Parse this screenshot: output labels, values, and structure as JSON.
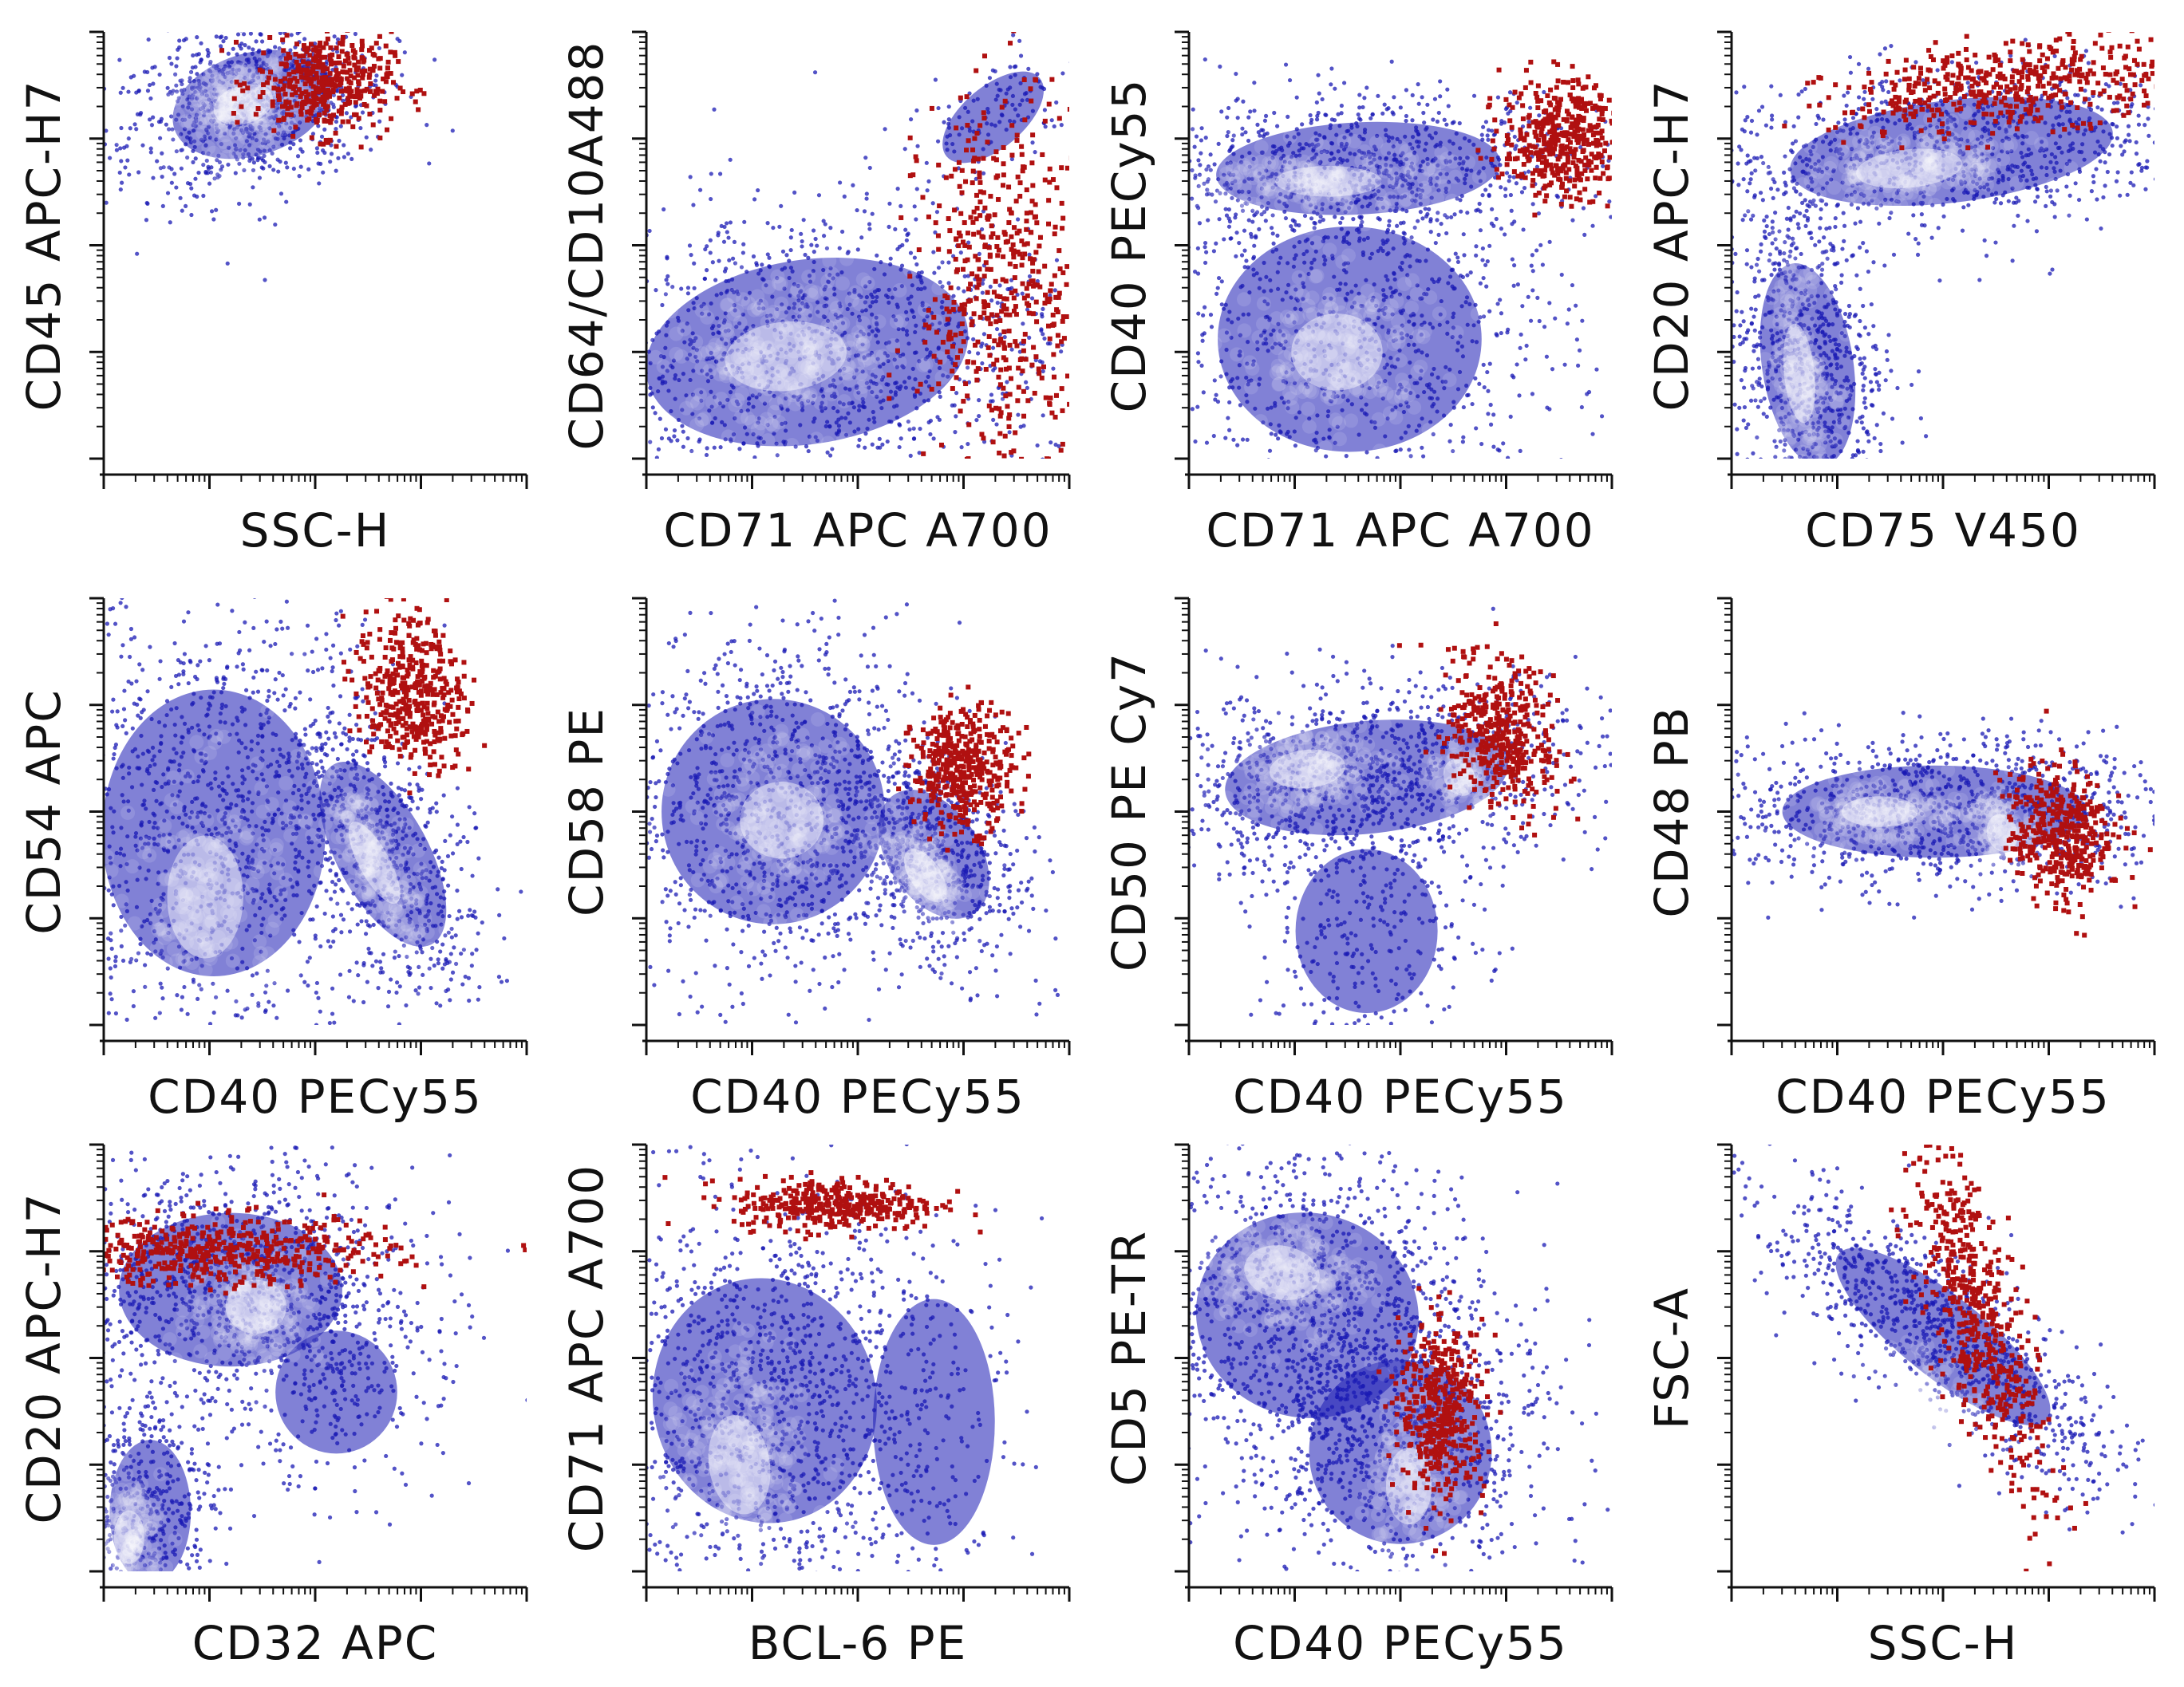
{
  "colors": {
    "population": "#1a1ab4",
    "core": "#ffffff",
    "gated": "#b01010",
    "axis": "#111111"
  },
  "chart_data": [
    {
      "type": "scatter",
      "xlabel": "SSC-H",
      "ylabel": "CD45 APC-H7",
      "xlim": [
        0,
        1
      ],
      "ylim": [
        0,
        1
      ],
      "clouds": [
        [
          0.35,
          0.83,
          0.16,
          0.1,
          0.3,
          900
        ]
      ],
      "cores": [
        [
          0.33,
          0.83,
          0.08,
          0.05,
          0.3,
          260
        ]
      ],
      "gated": [
        [
          0.52,
          0.88,
          0.08,
          0.06,
          0.0,
          420
        ]
      ]
    },
    {
      "type": "scatter",
      "xlabel": "CD71  APC  A700",
      "ylabel": "CD64/CD10A488",
      "xlim": [
        0,
        1
      ],
      "ylim": [
        0,
        1
      ],
      "clouds": [
        [
          0.38,
          0.25,
          0.32,
          0.18,
          0.15,
          1300
        ],
        [
          0.82,
          0.8,
          0.12,
          0.06,
          0.7,
          120
        ]
      ],
      "cores": [
        [
          0.33,
          0.24,
          0.16,
          0.09,
          0.1,
          280
        ]
      ],
      "gated": [
        [
          0.85,
          0.4,
          0.1,
          0.22,
          0.0,
          520
        ]
      ]
    },
    {
      "type": "scatter",
      "xlabel": "CD71  APC  A700",
      "ylabel": "CD40 PECy55",
      "xlim": [
        0,
        1
      ],
      "ylim": [
        0,
        1
      ],
      "clouds": [
        [
          0.4,
          0.68,
          0.28,
          0.09,
          0.05,
          800
        ],
        [
          0.38,
          0.28,
          0.26,
          0.22,
          0.0,
          950
        ]
      ],
      "cores": [
        [
          0.33,
          0.65,
          0.14,
          0.04,
          0.0,
          200
        ],
        [
          0.35,
          0.25,
          0.12,
          0.1,
          0.0,
          220
        ]
      ],
      "gated": [
        [
          0.88,
          0.75,
          0.07,
          0.07,
          0.0,
          420
        ]
      ]
    },
    {
      "type": "scatter",
      "xlabel": "CD75  V450",
      "ylabel": "CD20 APC-H7",
      "xlim": [
        0,
        1
      ],
      "ylim": [
        0,
        1
      ],
      "clouds": [
        [
          0.18,
          0.22,
          0.09,
          0.2,
          0.15,
          800
        ],
        [
          0.52,
          0.72,
          0.32,
          0.1,
          0.12,
          1000
        ]
      ],
      "cores": [
        [
          0.16,
          0.2,
          0.04,
          0.13,
          0.1,
          200
        ],
        [
          0.42,
          0.68,
          0.14,
          0.05,
          0.1,
          220
        ]
      ],
      "gated": [
        [
          0.68,
          0.88,
          0.22,
          0.05,
          0.12,
          480
        ]
      ]
    },
    {
      "type": "scatter",
      "xlabel": "CD40   PECy55",
      "ylabel": "CD54  APC",
      "xlim": [
        0,
        1
      ],
      "ylim": [
        0,
        1
      ],
      "clouds": [
        [
          0.26,
          0.45,
          0.22,
          0.28,
          0.0,
          1200
        ],
        [
          0.66,
          0.4,
          0.09,
          0.2,
          0.5,
          600
        ]
      ],
      "cores": [
        [
          0.24,
          0.3,
          0.1,
          0.16,
          0.0,
          200
        ],
        [
          0.64,
          0.38,
          0.04,
          0.12,
          0.5,
          200
        ]
      ],
      "gated": [
        [
          0.73,
          0.78,
          0.06,
          0.09,
          0.2,
          420
        ]
      ]
    },
    {
      "type": "scatter",
      "xlabel": "CD40   PECy55",
      "ylabel": "CD58 PE",
      "xlim": [
        0,
        1
      ],
      "ylim": [
        0,
        1
      ],
      "clouds": [
        [
          0.3,
          0.5,
          0.22,
          0.22,
          0.0,
          1200
        ],
        [
          0.68,
          0.4,
          0.09,
          0.14,
          0.6,
          550
        ]
      ],
      "cores": [
        [
          0.32,
          0.48,
          0.11,
          0.1,
          0.0,
          200
        ],
        [
          0.66,
          0.35,
          0.04,
          0.08,
          0.6,
          200
        ]
      ],
      "gated": [
        [
          0.75,
          0.6,
          0.06,
          0.07,
          0.0,
          420
        ]
      ]
    },
    {
      "type": "scatter",
      "xlabel": "CD40   PECy55",
      "ylabel": "CD50 PE Cy7",
      "xlim": [
        0,
        1
      ],
      "ylim": [
        0,
        1
      ],
      "clouds": [
        [
          0.42,
          0.58,
          0.28,
          0.11,
          0.1,
          1100
        ],
        [
          0.42,
          0.22,
          0.14,
          0.16,
          0.0,
          300
        ]
      ],
      "cores": [
        [
          0.28,
          0.6,
          0.1,
          0.05,
          0.1,
          200
        ],
        [
          0.64,
          0.58,
          0.04,
          0.05,
          0.5,
          100
        ]
      ],
      "gated": [
        [
          0.74,
          0.68,
          0.06,
          0.09,
          0.4,
          420
        ]
      ]
    },
    {
      "type": "scatter",
      "xlabel": "CD40   PECy55",
      "ylabel": "CD48 PB",
      "xlim": [
        0,
        1
      ],
      "ylim": [
        0,
        1
      ],
      "clouds": [
        [
          0.48,
          0.5,
          0.3,
          0.09,
          0.0,
          1100
        ]
      ],
      "cores": [
        [
          0.35,
          0.5,
          0.1,
          0.04,
          0.0,
          180
        ],
        [
          0.64,
          0.45,
          0.04,
          0.05,
          0.3,
          140
        ]
      ],
      "gated": [
        [
          0.78,
          0.45,
          0.06,
          0.08,
          0.2,
          420
        ]
      ]
    },
    {
      "type": "scatter",
      "xlabel": "CD32   APC",
      "ylabel": "CD20 APC-H7",
      "xlim": [
        0,
        1
      ],
      "ylim": [
        0,
        1
      ],
      "clouds": [
        [
          0.3,
          0.66,
          0.22,
          0.15,
          0.0,
          1100
        ],
        [
          0.11,
          0.14,
          0.08,
          0.14,
          0.0,
          450
        ],
        [
          0.55,
          0.42,
          0.12,
          0.12,
          0.0,
          200
        ]
      ],
      "cores": [
        [
          0.36,
          0.62,
          0.08,
          0.07,
          0.0,
          200
        ],
        [
          0.06,
          0.08,
          0.04,
          0.07,
          0.0,
          160
        ]
      ],
      "gated": [
        [
          0.28,
          0.75,
          0.2,
          0.04,
          0.0,
          480
        ]
      ]
    },
    {
      "type": "scatter",
      "xlabel": "BCL-6  PE",
      "ylabel": "CD71 APC A700",
      "xlim": [
        0,
        1
      ],
      "ylim": [
        0,
        1
      ],
      "clouds": [
        [
          0.28,
          0.4,
          0.22,
          0.24,
          0.2,
          1300
        ],
        [
          0.68,
          0.35,
          0.12,
          0.24,
          0.0,
          120
        ]
      ],
      "cores": [
        [
          0.22,
          0.25,
          0.08,
          0.13,
          0.15,
          240
        ]
      ],
      "gated": [
        [
          0.45,
          0.86,
          0.12,
          0.03,
          0.0,
          380
        ]
      ]
    },
    {
      "type": "scatter",
      "xlabel": "CD40   PECy55",
      "ylabel": "CD5 PE-TR",
      "xlim": [
        0,
        1
      ],
      "ylim": [
        0,
        1
      ],
      "clouds": [
        [
          0.28,
          0.6,
          0.22,
          0.2,
          -0.2,
          1200
        ],
        [
          0.5,
          0.28,
          0.18,
          0.18,
          0.0,
          700
        ]
      ],
      "cores": [
        [
          0.22,
          0.7,
          0.1,
          0.07,
          -0.2,
          220
        ],
        [
          0.52,
          0.2,
          0.06,
          0.1,
          0.0,
          160
        ]
      ],
      "gated": [
        [
          0.6,
          0.38,
          0.05,
          0.1,
          0.0,
          420
        ]
      ]
    },
    {
      "type": "scatter",
      "xlabel": "SSC-H",
      "ylabel": "FSC-A",
      "xlim": [
        0,
        1
      ],
      "ylim": [
        0,
        1
      ],
      "clouds": [
        [
          0.5,
          0.55,
          0.08,
          0.26,
          0.9,
          900
        ]
      ],
      "cores": [
        [
          0.46,
          0.38,
          0.05,
          0.08,
          0.9,
          200
        ]
      ],
      "gated": [
        [
          0.58,
          0.6,
          0.05,
          0.22,
          0.3,
          520
        ]
      ]
    }
  ]
}
